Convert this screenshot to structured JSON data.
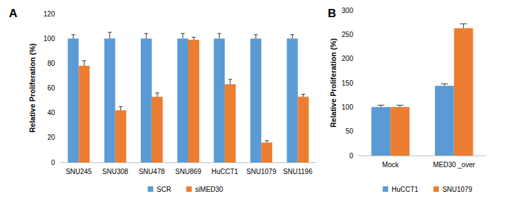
{
  "chart_data": [
    {
      "type": "bar",
      "title": "A",
      "y_label": "Relative Proliferation (%)",
      "categories": [
        "SNU245",
        "SNU308",
        "SNU478",
        "SNU869",
        "HuCCT1",
        "SNU1079",
        "SNU1196"
      ],
      "series": [
        {
          "name": "SCR",
          "color": "#5b9bd5",
          "values": [
            100,
            100,
            100,
            100,
            100,
            100,
            100
          ],
          "errors": [
            3,
            5,
            4,
            4,
            4,
            3,
            3
          ]
        },
        {
          "name": "siMED30",
          "color": "#ed7d31",
          "values": [
            78,
            42,
            53,
            99,
            63,
            16,
            53
          ],
          "errors": [
            4,
            3,
            3,
            2,
            4,
            1.5,
            2
          ]
        }
      ],
      "ylim": [
        0,
        120
      ],
      "yticks": [
        0,
        20,
        40,
        60,
        80,
        100,
        120
      ],
      "grid": false,
      "legend": "bottom"
    },
    {
      "type": "bar",
      "title": "B",
      "y_label": "Relative Proliferation (%)",
      "categories": [
        "Mock",
        "MED30 _over"
      ],
      "series": [
        {
          "name": "HuCCT1",
          "color": "#5b9bd5",
          "values": [
            100,
            144
          ],
          "errors": [
            4,
            4
          ]
        },
        {
          "name": "SNU1079",
          "color": "#ed7d31",
          "values": [
            100,
            263
          ],
          "errors": [
            4,
            9
          ]
        }
      ],
      "ylim": [
        0,
        300
      ],
      "yticks": [
        0,
        50,
        100,
        150,
        200,
        250,
        300
      ],
      "grid": false,
      "legend": "bottom"
    }
  ]
}
